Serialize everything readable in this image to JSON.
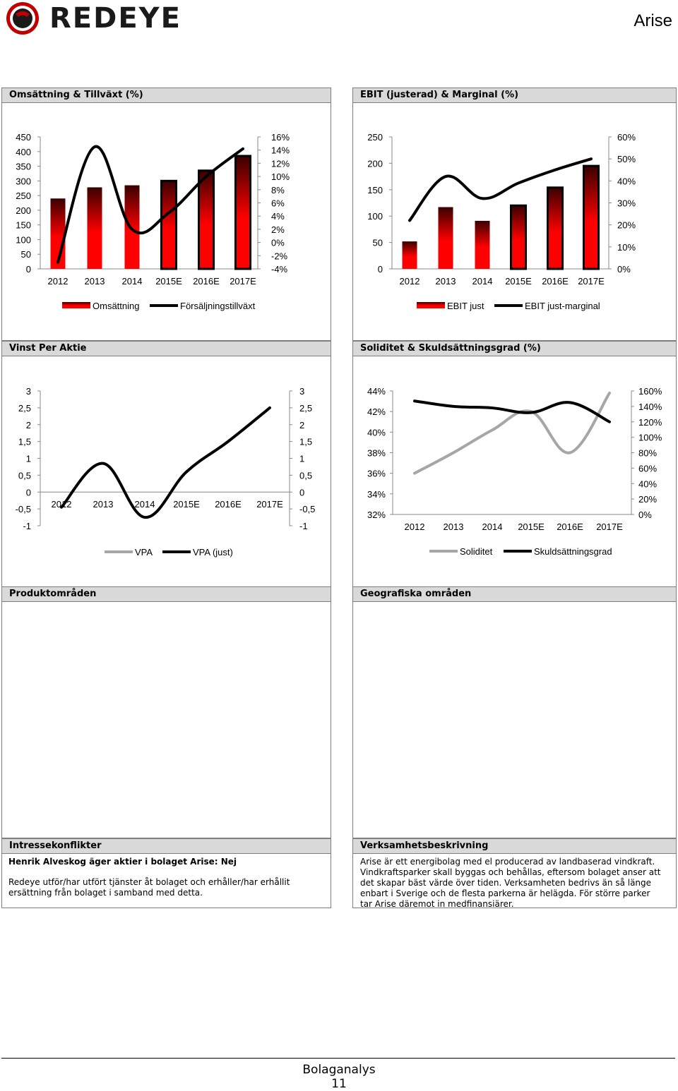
{
  "header": {
    "brand": "REDEYE",
    "company": "Arise",
    "colors": {
      "brand_red": "#c00000",
      "logo_dark": "#1a1a1a"
    },
    "logo_icon": "redeye-eye-icon"
  },
  "panels": {
    "p1": {
      "title": "Omsättning & Tillväxt (%)"
    },
    "p2": {
      "title": "EBIT (justerad) & Marginal (%)"
    },
    "p3": {
      "title": "Vinst Per Aktie"
    },
    "p4": {
      "title": "Soliditet & Skuldsättningsgrad (%)"
    },
    "p5": {
      "title": "Produktområden"
    },
    "p6": {
      "title": "Geografiska områden"
    },
    "p7": {
      "title": "Intressekonflikter"
    },
    "p8": {
      "title": "Verksamhetsbeskrivning"
    }
  },
  "chart_data": [
    {
      "id": "revenue",
      "type": "bar+line",
      "categories": [
        "2012",
        "2013",
        "2014",
        "2015E",
        "2016E",
        "2017E"
      ],
      "series": [
        {
          "name": "Omsättning",
          "type": "bar",
          "axis": "left",
          "values": [
            240,
            278,
            285,
            300,
            335,
            385
          ]
        },
        {
          "name": "Försäljningstillväxt",
          "type": "line",
          "axis": "right",
          "values": [
            -3,
            14.5,
            2,
            4.5,
            10,
            14.2
          ]
        }
      ],
      "left_axis": {
        "ticks": [
          "450",
          "400",
          "350",
          "300",
          "250",
          "200",
          "150",
          "100",
          "50",
          "0"
        ],
        "min": 0,
        "max": 450
      },
      "right_axis": {
        "ticks": [
          "16%",
          "14%",
          "12%",
          "10%",
          "8%",
          "6%",
          "4%",
          "2%",
          "0%",
          "-2%",
          "-4%"
        ],
        "min": -4,
        "max": 16
      },
      "legend": [
        "Omsättning",
        "Försäljningstillväxt"
      ],
      "legend_position": "bottom"
    },
    {
      "id": "ebit",
      "type": "bar+line",
      "categories": [
        "2012",
        "2013",
        "2014",
        "2015E",
        "2016E",
        "2017E"
      ],
      "series": [
        {
          "name": "EBIT just",
          "type": "bar",
          "axis": "left",
          "values": [
            52,
            117,
            91,
            120,
            154,
            195
          ]
        },
        {
          "name": "EBIT just-marginal",
          "type": "line",
          "axis": "right",
          "values": [
            22,
            42,
            32,
            39,
            45,
            50
          ]
        }
      ],
      "left_axis": {
        "ticks": [
          "250",
          "200",
          "150",
          "100",
          "50",
          "0"
        ],
        "min": 0,
        "max": 250
      },
      "right_axis": {
        "ticks": [
          "60%",
          "50%",
          "40%",
          "30%",
          "20%",
          "10%",
          "0%"
        ],
        "min": 0,
        "max": 60
      },
      "legend": [
        "EBIT just",
        "EBIT just-marginal"
      ],
      "legend_position": "bottom"
    },
    {
      "id": "eps",
      "type": "line",
      "categories": [
        "2012",
        "2013",
        "2014",
        "2015E",
        "2016E",
        "2017E"
      ],
      "series": [
        {
          "name": "VPA",
          "values": [
            -0.45,
            0.85,
            -0.75,
            0.6,
            1.5,
            2.5
          ]
        },
        {
          "name": "VPA (just)",
          "values": [
            -0.45,
            0.85,
            -0.75,
            0.6,
            1.5,
            2.5
          ]
        }
      ],
      "left_axis": {
        "ticks": [
          "3",
          "2,5",
          "2",
          "1,5",
          "1",
          "0,5",
          "0",
          "-0,5",
          "-1"
        ],
        "min": -1,
        "max": 3
      },
      "right_axis": {
        "ticks": [
          "3",
          "2,5",
          "2",
          "1,5",
          "1",
          "0,5",
          "0",
          "-0,5",
          "-1"
        ],
        "min": -1,
        "max": 3
      },
      "legend": [
        "VPA",
        "VPA (just)"
      ],
      "legend_position": "bottom"
    },
    {
      "id": "solidity",
      "type": "line",
      "categories": [
        "2012",
        "2013",
        "2014",
        "2015E",
        "2016E",
        "2017E"
      ],
      "series": [
        {
          "name": "Soliditet",
          "axis": "left",
          "color": "#a6a6a6",
          "values": [
            36,
            38,
            40.2,
            42,
            38,
            43.8
          ]
        },
        {
          "name": "Skuldsättningsgrad",
          "axis": "right",
          "color": "#000000",
          "values": [
            147,
            140,
            138,
            132,
            145,
            120
          ]
        }
      ],
      "left_axis": {
        "ticks": [
          "44%",
          "42%",
          "40%",
          "38%",
          "36%",
          "34%",
          "32%"
        ],
        "min": 32,
        "max": 44
      },
      "right_axis": {
        "ticks": [
          "160%",
          "140%",
          "120%",
          "100%",
          "80%",
          "60%",
          "40%",
          "20%",
          "0%"
        ],
        "min": 0,
        "max": 160
      },
      "legend": [
        "Soliditet",
        "Skuldsättningsgrad"
      ],
      "legend_position": "bottom"
    }
  ],
  "conflicts": {
    "line1": "Henrik Alveskog äger aktier i bolaget Arise: Nej",
    "line2": "Redeye utför/har utfört tjänster åt bolaget och erhåller/har erhållit\nersättning från bolaget i samband med detta."
  },
  "description": {
    "text": "Arise är ett energibolag med el producerad av landbaserad vindkraft.\nVindkraftsparker skall byggas och behållas, eftersom bolaget anser att\ndet skapar bäst värde över tiden. Verksamheten bedrivs än så länge\nenbart i Sverige och de flesta parkerna är helägda. För större parker\ntar Arise däremot in medfinansiärer."
  },
  "footer": {
    "title": "Bolaganalys",
    "page": "11"
  }
}
